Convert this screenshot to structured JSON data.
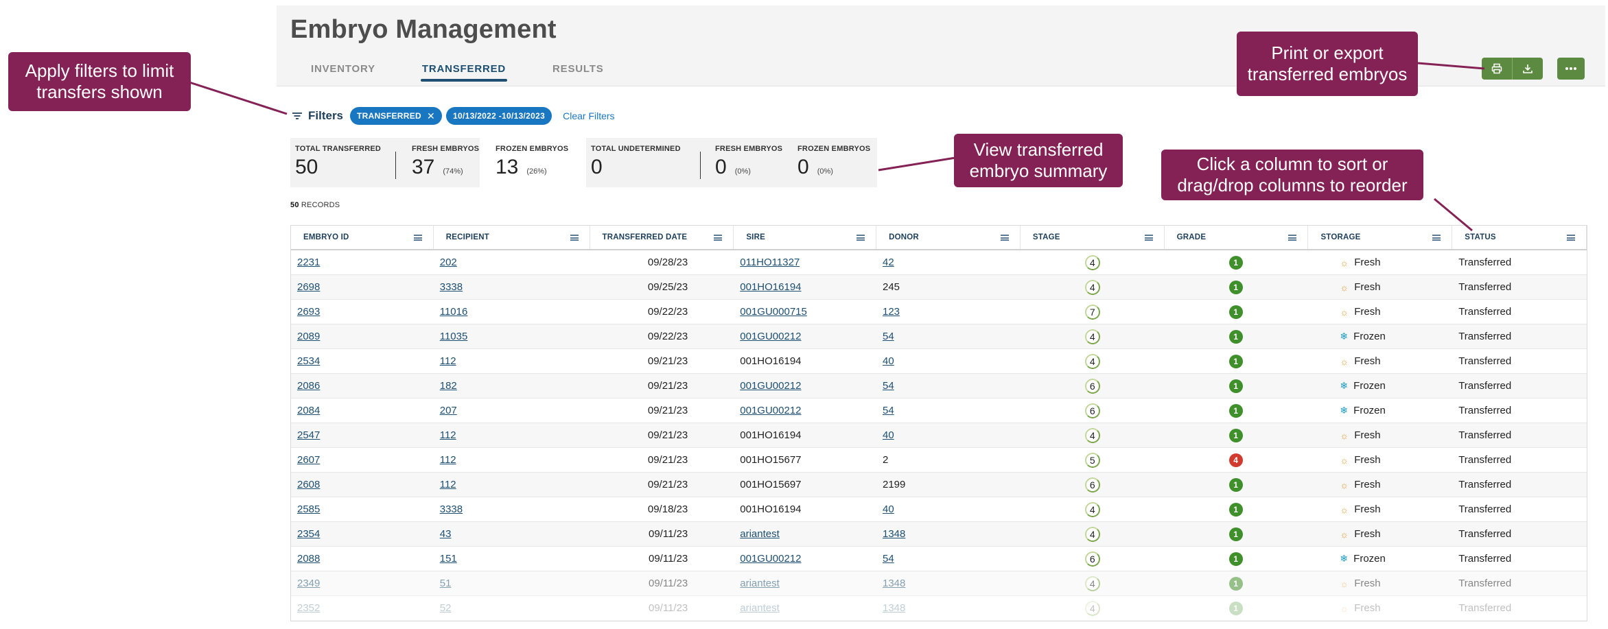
{
  "page": {
    "title": "Embryo Management",
    "tabs": [
      "INVENTORY",
      "TRANSFERRED",
      "RESULTS"
    ],
    "active_tab": "TRANSFERRED",
    "actions": {
      "print_icon": "printer-icon",
      "export_icon": "download-icon",
      "more_icon": "more-icon"
    }
  },
  "filters": {
    "label": "Filters",
    "chips": [
      "TRANSFERRED",
      "10/13/2022 -10/13/2023"
    ],
    "clear_label": "Clear Filters"
  },
  "summary": {
    "left": {
      "total_label": "TOTAL TRANSFERRED",
      "total_value": "50",
      "fresh_label": "FRESH EMBRYOS",
      "fresh_value": "37",
      "fresh_pct": "(74%)",
      "frozen_label": "FROZEN EMBRYOS",
      "frozen_value": "13",
      "frozen_pct": "(26%)"
    },
    "right": {
      "total_label": "TOTAL UNDETERMINED",
      "total_value": "0",
      "fresh_label": "FRESH EMBRYOS",
      "fresh_value": "0",
      "fresh_pct": "(0%)",
      "frozen_label": "FROZEN EMBRYOS",
      "frozen_value": "0",
      "frozen_pct": "(0%)"
    }
  },
  "records": {
    "count": "50",
    "label": "RECORDS"
  },
  "table": {
    "columns": [
      "EMBRYO ID",
      "RECIPIENT",
      "TRANSFERRED DATE",
      "SIRE",
      "DONOR",
      "STAGE",
      "GRADE",
      "STORAGE",
      "STATUS"
    ],
    "rows": [
      {
        "id": "2231",
        "recipient": "202",
        "date": "09/28/23",
        "sire": "011HO11327",
        "sire_link": true,
        "donor": "42",
        "donor_link": true,
        "stage": "4",
        "grade": "1",
        "storage": "Fresh",
        "status": "Transferred"
      },
      {
        "id": "2698",
        "recipient": "3338",
        "date": "09/25/23",
        "sire": "001HO16194",
        "sire_link": true,
        "donor": "245",
        "donor_link": false,
        "stage": "4",
        "grade": "1",
        "storage": "Fresh",
        "status": "Transferred"
      },
      {
        "id": "2693",
        "recipient": "11016",
        "date": "09/22/23",
        "sire": "001GU000715",
        "sire_link": true,
        "donor": "123",
        "donor_link": true,
        "stage": "7",
        "grade": "1",
        "storage": "Fresh",
        "status": "Transferred"
      },
      {
        "id": "2089",
        "recipient": "11035",
        "date": "09/22/23",
        "sire": "001GU00212",
        "sire_link": true,
        "donor": "54",
        "donor_link": true,
        "stage": "4",
        "grade": "1",
        "storage": "Frozen",
        "status": "Transferred"
      },
      {
        "id": "2534",
        "recipient": "112",
        "date": "09/21/23",
        "sire": "001HO16194",
        "sire_link": false,
        "donor": "40",
        "donor_link": true,
        "stage": "4",
        "grade": "1",
        "storage": "Fresh",
        "status": "Transferred"
      },
      {
        "id": "2086",
        "recipient": "182",
        "date": "09/21/23",
        "sire": "001GU00212",
        "sire_link": true,
        "donor": "54",
        "donor_link": true,
        "stage": "6",
        "grade": "1",
        "storage": "Frozen",
        "status": "Transferred"
      },
      {
        "id": "2084",
        "recipient": "207",
        "date": "09/21/23",
        "sire": "001GU00212",
        "sire_link": true,
        "donor": "54",
        "donor_link": true,
        "stage": "6",
        "grade": "1",
        "storage": "Frozen",
        "status": "Transferred"
      },
      {
        "id": "2547",
        "recipient": "112",
        "date": "09/21/23",
        "sire": "001HO16194",
        "sire_link": false,
        "donor": "40",
        "donor_link": true,
        "stage": "4",
        "grade": "1",
        "storage": "Fresh",
        "status": "Transferred"
      },
      {
        "id": "2607",
        "recipient": "112",
        "date": "09/21/23",
        "sire": "001HO15677",
        "sire_link": false,
        "donor": "2",
        "donor_link": false,
        "stage": "5",
        "grade": "4",
        "storage": "Fresh",
        "status": "Transferred"
      },
      {
        "id": "2608",
        "recipient": "112",
        "date": "09/21/23",
        "sire": "001HO15697",
        "sire_link": false,
        "donor": "2199",
        "donor_link": false,
        "stage": "6",
        "grade": "1",
        "storage": "Fresh",
        "status": "Transferred"
      },
      {
        "id": "2585",
        "recipient": "3338",
        "date": "09/18/23",
        "sire": "001HO16194",
        "sire_link": false,
        "donor": "40",
        "donor_link": true,
        "stage": "4",
        "grade": "1",
        "storage": "Fresh",
        "status": "Transferred"
      },
      {
        "id": "2354",
        "recipient": "43",
        "date": "09/11/23",
        "sire": "ariantest",
        "sire_link": true,
        "donor": "1348",
        "donor_link": true,
        "stage": "4",
        "grade": "1",
        "storage": "Fresh",
        "status": "Transferred"
      },
      {
        "id": "2088",
        "recipient": "151",
        "date": "09/11/23",
        "sire": "001GU00212",
        "sire_link": true,
        "donor": "54",
        "donor_link": true,
        "stage": "6",
        "grade": "1",
        "storage": "Frozen",
        "status": "Transferred"
      },
      {
        "id": "2349",
        "recipient": "51",
        "date": "09/11/23",
        "sire": "ariantest",
        "sire_link": true,
        "donor": "1348",
        "donor_link": true,
        "stage": "4",
        "grade": "1",
        "storage": "Fresh",
        "status": "Transferred"
      },
      {
        "id": "2352",
        "recipient": "52",
        "date": "09/11/23",
        "sire": "ariantest",
        "sire_link": true,
        "donor": "1348",
        "donor_link": true,
        "stage": "4",
        "grade": "1",
        "storage": "Fresh",
        "status": "Transferred"
      }
    ]
  },
  "callouts": {
    "filters": "Apply filters to limit transfers shown",
    "export": "Print or export transferred embryos",
    "summary": "View transferred embryo summary",
    "columns": "Click a column to sort or drag/drop columns to reorder"
  },
  "colors": {
    "callout": "#842155",
    "accent_blue": "#1d4f72",
    "chip_blue": "#1977c1",
    "action_green": "#5b8a40",
    "grade_green": "#3f8f2a",
    "grade_red": "#d03a2f"
  }
}
